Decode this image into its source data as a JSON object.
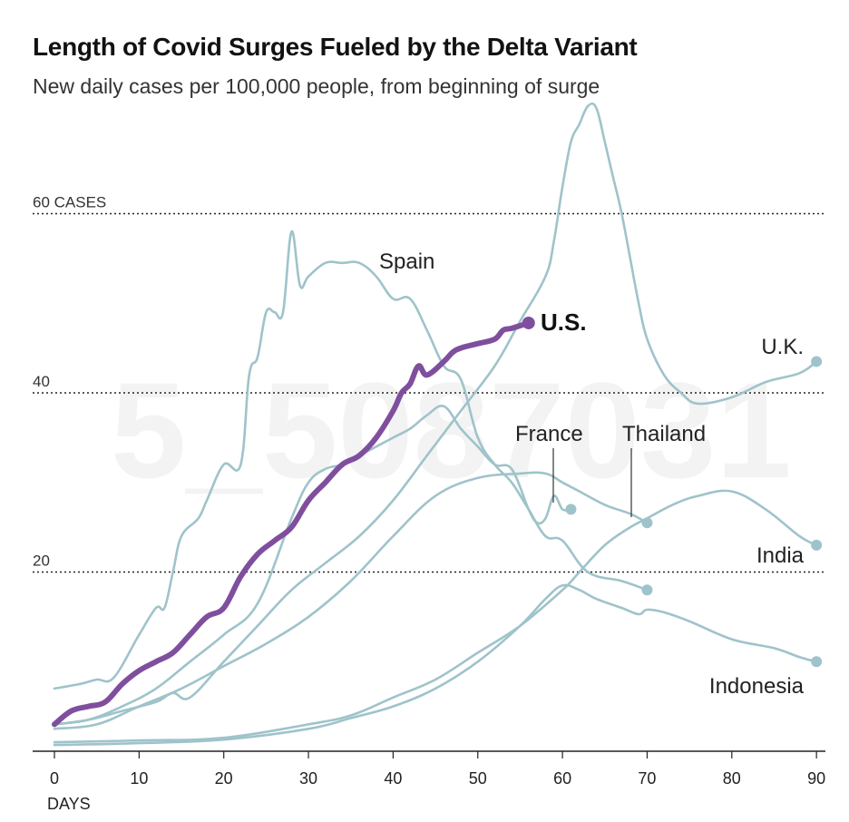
{
  "chart_data": {
    "type": "line",
    "title": "Length of Covid Surges Fueled by the Delta Variant",
    "subtitle": "New daily cases per 100,000 people, from beginning of surge",
    "xlabel": "DAYS",
    "xlim": [
      0,
      90
    ],
    "ylim": [
      0,
      70
    ],
    "x_ticks": [
      "0",
      "10",
      "20",
      "30",
      "40",
      "50",
      "60",
      "70",
      "80",
      "90"
    ],
    "y_gridlines": [
      {
        "value": 20,
        "label": "20"
      },
      {
        "value": 40,
        "label": "40"
      },
      {
        "value": 60,
        "label": "60 CASES"
      }
    ],
    "watermark": "5_5087031",
    "colors": {
      "highlight": "#7f4f9e",
      "others": "#9fc3ca",
      "grid": "#222222"
    },
    "series": [
      {
        "name": "Spain",
        "highlight": false,
        "x": [
          0,
          3,
          5,
          7,
          10,
          12,
          13,
          14,
          15,
          17,
          18,
          20,
          22,
          23,
          24,
          25,
          26,
          27,
          28,
          29,
          30,
          32,
          34,
          36,
          38,
          40,
          42,
          44,
          46,
          48,
          50,
          52,
          54,
          56,
          58,
          60,
          63,
          67,
          70
        ],
        "y": [
          7,
          7.5,
          8,
          8.2,
          13,
          16,
          16,
          20,
          24,
          26,
          28,
          32,
          32,
          42,
          44,
          49,
          49,
          49,
          58,
          52,
          53,
          54.5,
          54.5,
          54.5,
          53,
          50.5,
          50.5,
          47,
          43,
          41.5,
          35,
          32,
          30,
          27,
          24,
          23.5,
          20,
          19,
          18
        ]
      },
      {
        "name": "U.S.",
        "highlight": true,
        "x": [
          0,
          2,
          4,
          6,
          8,
          10,
          12,
          14,
          16,
          18,
          20,
          22,
          24,
          26,
          28,
          30,
          32,
          34,
          36,
          38,
          40,
          41,
          42,
          43,
          44,
          46,
          47,
          48,
          50,
          52,
          53,
          54,
          56
        ],
        "y": [
          3,
          4.5,
          5,
          5.5,
          7.5,
          9,
          10,
          11,
          13,
          15,
          16,
          19.5,
          22,
          23.5,
          25,
          28,
          30,
          32,
          33,
          35,
          38,
          40,
          41,
          43,
          42,
          43.5,
          44.5,
          45,
          45.5,
          46,
          47,
          47.2,
          47.8
        ]
      },
      {
        "name": "U.K.",
        "highlight": false,
        "x": [
          0,
          4,
          8,
          12,
          14,
          16,
          20,
          24,
          28,
          32,
          36,
          40,
          44,
          48,
          52,
          55,
          58,
          59,
          60,
          61,
          62,
          63,
          64,
          65,
          66,
          67,
          68,
          69,
          70,
          72,
          74,
          76,
          80,
          84,
          88,
          90
        ],
        "y": [
          3,
          3.5,
          4.5,
          5.5,
          6.5,
          6,
          10,
          14,
          18,
          21,
          24,
          28,
          33,
          38,
          43,
          48,
          53,
          57,
          63,
          68,
          70,
          72,
          71.8,
          68,
          64,
          60,
          55,
          50,
          46,
          42,
          40,
          38.8,
          39.5,
          41.2,
          42.2,
          43.5
        ]
      },
      {
        "name": "France",
        "highlight": false,
        "x": [
          0,
          4,
          8,
          12,
          16,
          20,
          24,
          28,
          30,
          32,
          34,
          36,
          38,
          40,
          42,
          44,
          46,
          48,
          50,
          52,
          54,
          56,
          57,
          58,
          59,
          60,
          61
        ],
        "y": [
          3,
          3.5,
          5,
          7,
          10,
          13,
          16.5,
          26,
          30,
          31.5,
          32,
          33,
          34,
          35,
          36,
          37.5,
          38.5,
          36,
          34,
          32,
          31.5,
          27,
          25.5,
          26,
          28.5,
          27,
          27
        ]
      },
      {
        "name": "Thailand",
        "highlight": false,
        "x": [
          0,
          5,
          10,
          15,
          20,
          25,
          30,
          35,
          40,
          45,
          50,
          55,
          58,
          60,
          62,
          65,
          68,
          70
        ],
        "y": [
          2.5,
          3,
          5,
          7,
          9.5,
          12,
          15,
          19,
          24,
          28.5,
          30.5,
          31,
          31,
          30,
          29,
          27.5,
          26.5,
          25.5
        ]
      },
      {
        "name": "India",
        "highlight": false,
        "x": [
          0,
          10,
          20,
          30,
          35,
          40,
          45,
          50,
          55,
          60,
          62,
          65,
          68,
          70,
          73,
          76,
          80,
          84,
          88,
          90
        ],
        "y": [
          1,
          1.2,
          1.5,
          3,
          4,
          6,
          8,
          11,
          14,
          18,
          20,
          23,
          25,
          26,
          27.5,
          28.5,
          29,
          27,
          24,
          23
        ]
      },
      {
        "name": "Indonesia",
        "highlight": false,
        "x": [
          0,
          10,
          20,
          30,
          35,
          40,
          45,
          50,
          55,
          58,
          60,
          62,
          64,
          67,
          69,
          70,
          72,
          75,
          80,
          85,
          88,
          90
        ],
        "y": [
          0.7,
          0.9,
          1.3,
          2.5,
          3.7,
          5,
          7,
          10,
          14,
          17,
          18.5,
          18,
          17,
          16,
          15.3,
          15.8,
          15.5,
          14.5,
          12.5,
          11.5,
          10.5,
          10
        ]
      }
    ],
    "annotations": [
      {
        "text": "Spain",
        "series": "Spain"
      },
      {
        "text": "U.S.",
        "series": "U.S."
      },
      {
        "text": "U.K.",
        "series": "U.K."
      },
      {
        "text": "France",
        "series": "France"
      },
      {
        "text": "Thailand",
        "series": "Thailand"
      },
      {
        "text": "India",
        "series": "India"
      },
      {
        "text": "Indonesia",
        "series": "Indonesia"
      }
    ]
  }
}
